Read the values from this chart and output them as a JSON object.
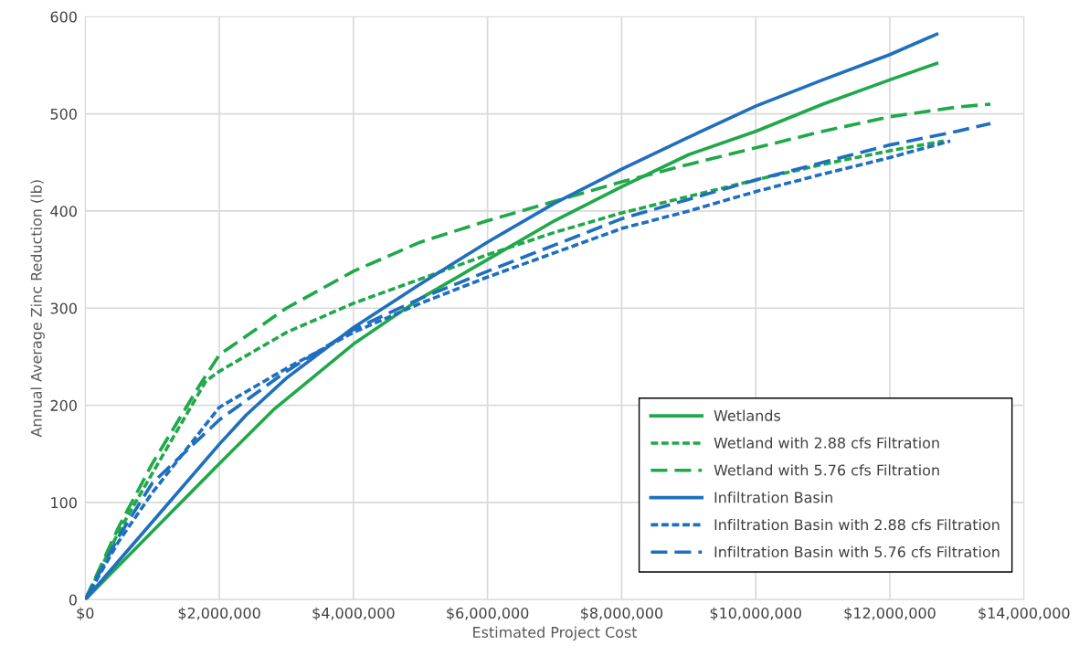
{
  "chart_data": {
    "type": "line",
    "xlabel": "Estimated Project Cost",
    "ylabel": "Annual Average Zinc Reduction (lb)",
    "xlim": [
      0,
      14000000
    ],
    "xticks": [
      {
        "value": 0,
        "label": "$0"
      },
      {
        "value": 2000000,
        "label": "$2,000,000"
      },
      {
        "value": 4000000,
        "label": "$4,000,000"
      },
      {
        "value": 6000000,
        "label": "$6,000,000"
      },
      {
        "value": 8000000,
        "label": "$8,000,000"
      },
      {
        "value": 10000000,
        "label": "$10,000,000"
      },
      {
        "value": 12000000,
        "label": "$12,000,000"
      },
      {
        "value": 14000000,
        "label": "$14,000,000"
      }
    ],
    "ylim": [
      0,
      600
    ],
    "yticks": [
      0,
      100,
      200,
      300,
      400,
      500,
      600
    ],
    "grid": true,
    "legend": "bottom right",
    "marker": "none",
    "series": [
      {
        "name": "Wetlands",
        "color": "#20a84a",
        "line_style": "solid",
        "x": [
          0,
          1000000,
          2000000,
          2800000,
          4000000,
          5000000,
          6000000,
          7000000,
          8000000,
          9000000,
          10000000,
          11000000,
          12000000,
          12700000
        ],
        "values": [
          0,
          70,
          140,
          195,
          263,
          310,
          350,
          390,
          425,
          458,
          482,
          510,
          535,
          552
        ]
      },
      {
        "name": "Wetland with 2.88 cfs Filtration",
        "color": "#20a84a",
        "line_style": "dotted",
        "x": [
          0,
          500000,
          1000000,
          1800000,
          2000000,
          3000000,
          4000000,
          5000000,
          6000000,
          7000000,
          8000000,
          9000000,
          10000000,
          11000000,
          12000000,
          12800000
        ],
        "values": [
          0,
          70,
          130,
          225,
          235,
          275,
          305,
          330,
          355,
          378,
          398,
          415,
          432,
          448,
          462,
          472
        ]
      },
      {
        "name": "Wetland with 5.76 cfs Filtration",
        "color": "#20a84a",
        "line_style": "dashed",
        "x": [
          0,
          500000,
          1000000,
          1700000,
          2000000,
          3000000,
          4000000,
          5000000,
          6000000,
          7000000,
          8000000,
          9000000,
          10000000,
          11000000,
          12000000,
          13000000,
          13500000
        ],
        "values": [
          0,
          75,
          140,
          220,
          252,
          300,
          338,
          368,
          390,
          410,
          430,
          448,
          465,
          482,
          497,
          507,
          510
        ]
      },
      {
        "name": "Infiltration Basin",
        "color": "#1f6fbf",
        "line_style": "solid",
        "x": [
          0,
          1000000,
          2000000,
          2400000,
          3000000,
          4000000,
          5000000,
          6000000,
          7000000,
          8000000,
          9000000,
          10000000,
          11000000,
          12000000,
          12700000
        ],
        "values": [
          0,
          80,
          160,
          190,
          228,
          280,
          325,
          368,
          408,
          443,
          476,
          508,
          535,
          561,
          582
        ]
      },
      {
        "name": "Infiltration Basin with 2.88 cfs Filtration",
        "color": "#1f6fbf",
        "line_style": "dotted",
        "x": [
          0,
          500000,
          1000000,
          2000000,
          3000000,
          4000000,
          5000000,
          6000000,
          7000000,
          8000000,
          9000000,
          10000000,
          11000000,
          12000000,
          12900000
        ],
        "values": [
          0,
          60,
          110,
          198,
          238,
          275,
          305,
          332,
          357,
          382,
          400,
          420,
          438,
          455,
          472
        ]
      },
      {
        "name": "Infiltration Basin with 5.76 cfs Filtration",
        "color": "#1f6fbf",
        "line_style": "dashed",
        "x": [
          0,
          500000,
          1000000,
          2000000,
          3000000,
          4000000,
          5000000,
          6000000,
          7000000,
          8000000,
          9000000,
          10000000,
          11000000,
          12000000,
          13000000,
          13500000
        ],
        "values": [
          0,
          65,
          120,
          185,
          235,
          278,
          310,
          338,
          365,
          392,
          412,
          432,
          450,
          468,
          482,
          490
        ]
      }
    ]
  }
}
